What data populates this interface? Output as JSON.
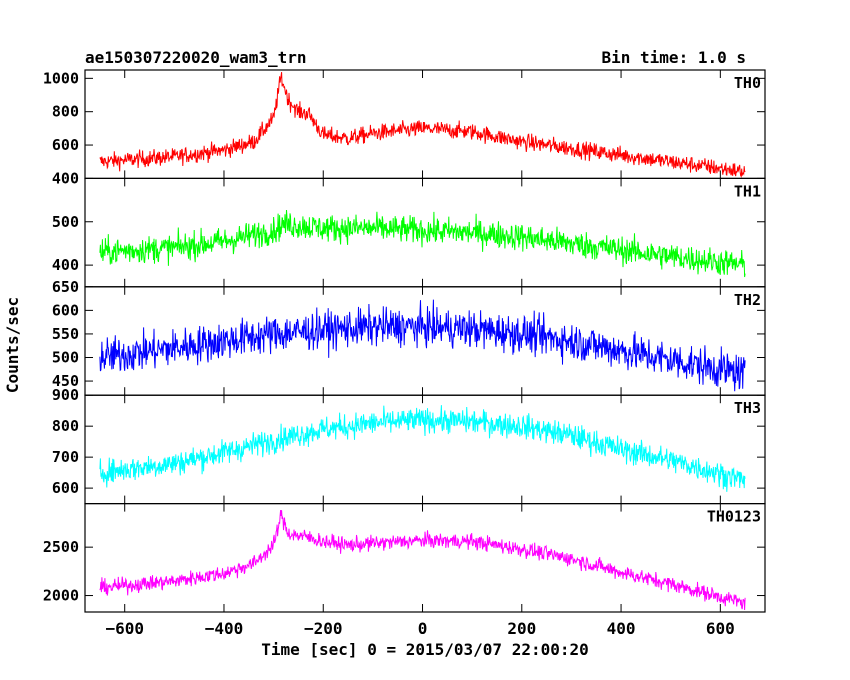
{
  "header": {
    "title": "ae150307220020_wam3_trn",
    "bin_time": "Bin time: 1.0 s"
  },
  "chart_data": {
    "type": "line",
    "xlabel": "Time [sec] 0 = 2015/03/07 22:00:20",
    "ylabel": "Counts/sec",
    "xlim": [
      -680,
      690
    ],
    "x_ticks": [
      -600,
      -400,
      -200,
      0,
      200,
      400,
      600
    ],
    "x_range": [
      -650,
      650
    ],
    "series_note": "1 s binned light curves; values below are the smoothed trend (counts/sec) at the listed times",
    "panels": [
      {
        "name": "TH0",
        "color": "#ff0000",
        "ylim": [
          400,
          1050
        ],
        "y_ticks": [
          400,
          600,
          800,
          1000
        ],
        "trend": {
          "x": [
            -650,
            -500,
            -400,
            -340,
            -300,
            -285,
            -270,
            -250,
            -230,
            -200,
            -150,
            -100,
            0,
            100,
            200,
            300,
            400,
            500,
            650
          ],
          "y": [
            500,
            530,
            570,
            620,
            760,
            1010,
            870,
            800,
            790,
            660,
            640,
            670,
            700,
            680,
            620,
            580,
            540,
            500,
            440
          ]
        },
        "noise": 35
      },
      {
        "name": "TH1",
        "color": "#00ff00",
        "ylim": [
          350,
          600
        ],
        "y_ticks": [
          400,
          500
        ],
        "trend": {
          "x": [
            -650,
            -500,
            -400,
            -300,
            -280,
            -200,
            -100,
            0,
            100,
            200,
            300,
            400,
            500,
            650
          ],
          "y": [
            430,
            440,
            455,
            480,
            495,
            485,
            485,
            480,
            475,
            465,
            450,
            435,
            420,
            400
          ]
        },
        "noise": 22
      },
      {
        "name": "TH2",
        "color": "#0000ff",
        "ylim": [
          420,
          650
        ],
        "y_ticks": [
          450,
          500,
          550,
          600,
          650
        ],
        "trend": {
          "x": [
            -650,
            -500,
            -400,
            -300,
            -200,
            -100,
            0,
            100,
            200,
            300,
            400,
            500,
            650
          ],
          "y": [
            500,
            520,
            535,
            550,
            558,
            565,
            565,
            560,
            550,
            535,
            515,
            495,
            465
          ]
        },
        "noise": 28
      },
      {
        "name": "TH3",
        "color": "#00ffff",
        "ylim": [
          550,
          900
        ],
        "y_ticks": [
          600,
          700,
          800,
          900
        ],
        "trend": {
          "x": [
            -650,
            -500,
            -400,
            -300,
            -200,
            -100,
            0,
            100,
            200,
            300,
            400,
            500,
            650
          ],
          "y": [
            650,
            680,
            715,
            755,
            790,
            810,
            820,
            815,
            800,
            770,
            725,
            690,
            625
          ]
        },
        "noise": 28
      },
      {
        "name": "TH0123",
        "color": "#ff00ff",
        "ylim": [
          1830,
          2950
        ],
        "y_ticks": [
          2000,
          2500
        ],
        "trend": {
          "x": [
            -650,
            -500,
            -400,
            -340,
            -300,
            -285,
            -270,
            -250,
            -230,
            -200,
            -150,
            -100,
            0,
            100,
            200,
            300,
            400,
            500,
            650
          ],
          "y": [
            2080,
            2150,
            2230,
            2330,
            2520,
            2830,
            2640,
            2620,
            2600,
            2560,
            2520,
            2540,
            2570,
            2560,
            2480,
            2380,
            2240,
            2120,
            1920
          ]
        },
        "noise": 55
      }
    ]
  }
}
